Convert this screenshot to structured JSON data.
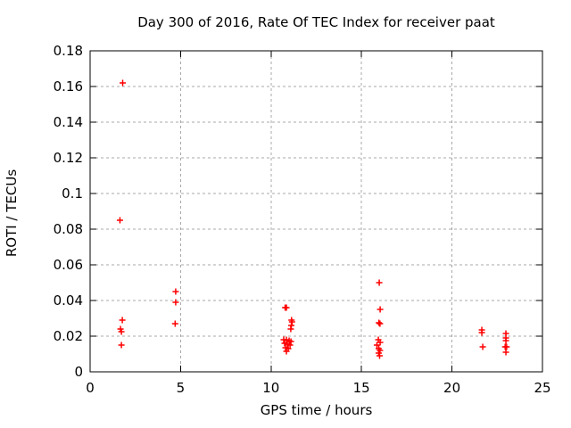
{
  "chart_data": {
    "type": "scatter",
    "title": "Day 300 of 2016, Rate Of TEC Index for receiver paat",
    "xlabel": "GPS time / hours",
    "ylabel": "ROTI / TECUs",
    "xlim": [
      0,
      25
    ],
    "ylim": [
      0,
      0.18
    ],
    "xticks": {
      "values": [
        0,
        5,
        10,
        15,
        20,
        25
      ],
      "labels": [
        "0",
        "5",
        "10",
        "15",
        "20",
        "25"
      ]
    },
    "yticks": {
      "values": [
        0,
        0.02,
        0.04,
        0.06,
        0.08,
        0.1,
        0.12,
        0.14,
        0.16,
        0.18
      ],
      "labels": [
        "0",
        "0.02",
        "0.04",
        "0.06",
        "0.08",
        "0.1",
        "0.12",
        "0.14",
        "0.16",
        "0.18"
      ]
    },
    "grid": true,
    "legend": false,
    "marker": {
      "shape": "plus",
      "color": "#ff0000",
      "size": 7
    },
    "axis_color": "#000000",
    "grid_color": "#a8a8a8",
    "background": "#ffffff",
    "series": [
      {
        "name": "ROTI",
        "points": [
          [
            1.8,
            0.162
          ],
          [
            1.65,
            0.085
          ],
          [
            1.78,
            0.029
          ],
          [
            1.68,
            0.024
          ],
          [
            1.73,
            0.0225
          ],
          [
            1.73,
            0.015
          ],
          [
            4.73,
            0.045
          ],
          [
            4.73,
            0.039
          ],
          [
            4.7,
            0.027
          ],
          [
            10.78,
            0.036
          ],
          [
            10.85,
            0.036
          ],
          [
            11.13,
            0.029
          ],
          [
            11.16,
            0.028
          ],
          [
            11.12,
            0.026
          ],
          [
            11.09,
            0.024
          ],
          [
            10.7,
            0.018
          ],
          [
            10.85,
            0.018
          ],
          [
            11.0,
            0.0175
          ],
          [
            11.1,
            0.017
          ],
          [
            10.75,
            0.016
          ],
          [
            10.9,
            0.0155
          ],
          [
            11.05,
            0.015
          ],
          [
            10.8,
            0.0135
          ],
          [
            10.95,
            0.013
          ],
          [
            10.85,
            0.0115
          ],
          [
            15.98,
            0.05
          ],
          [
            16.03,
            0.035
          ],
          [
            15.96,
            0.0275
          ],
          [
            16.02,
            0.027
          ],
          [
            15.93,
            0.018
          ],
          [
            16.03,
            0.0165
          ],
          [
            15.85,
            0.015
          ],
          [
            15.95,
            0.013
          ],
          [
            16.02,
            0.012
          ],
          [
            15.95,
            0.0105
          ],
          [
            16.0,
            0.009
          ],
          [
            21.65,
            0.0235
          ],
          [
            21.65,
            0.022
          ],
          [
            21.7,
            0.014
          ],
          [
            22.98,
            0.0215
          ],
          [
            22.98,
            0.019
          ],
          [
            22.98,
            0.0175
          ],
          [
            22.94,
            0.014
          ],
          [
            23.02,
            0.014
          ],
          [
            22.98,
            0.011
          ]
        ]
      }
    ]
  }
}
